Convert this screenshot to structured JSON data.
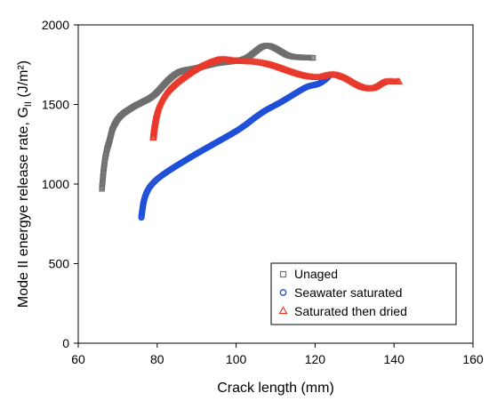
{
  "chart_data": {
    "type": "scatter",
    "xlabel": "Crack length (mm)",
    "ylabel": "Mode II energye release rate, G",
    "ylabel_subscript": "II",
    "ylabel_unit": " (J/m²)",
    "xlim": [
      60,
      160
    ],
    "ylim": [
      0,
      2000
    ],
    "xticks": [
      "60",
      "80",
      "100",
      "120",
      "140",
      "160"
    ],
    "yticks": [
      "0",
      "500",
      "1000",
      "1500",
      "2000"
    ],
    "grid": false,
    "legend_position": "bottom-right",
    "series": [
      {
        "name": "Unaged",
        "marker": "square",
        "color": "#6e6e6e",
        "points": [
          [
            66,
            970
          ],
          [
            66.4,
            1080
          ],
          [
            66.8,
            1160
          ],
          [
            67.3,
            1220
          ],
          [
            67.8,
            1260
          ],
          [
            68.2,
            1300
          ],
          [
            68.6,
            1340
          ],
          [
            69.1,
            1370
          ],
          [
            69.8,
            1400
          ],
          [
            70.6,
            1425
          ],
          [
            71.5,
            1445
          ],
          [
            72.5,
            1462
          ],
          [
            73.5,
            1478
          ],
          [
            74.5,
            1493
          ],
          [
            75.5,
            1505
          ],
          [
            76.5,
            1518
          ],
          [
            77.5,
            1530
          ],
          [
            78.5,
            1545
          ],
          [
            79.5,
            1565
          ],
          [
            80.5,
            1590
          ],
          [
            81.5,
            1618
          ],
          [
            82.5,
            1645
          ],
          [
            83.5,
            1668
          ],
          [
            84.5,
            1688
          ],
          [
            85.5,
            1703
          ],
          [
            86.5,
            1712
          ],
          [
            87.5,
            1718
          ],
          [
            88.5,
            1722
          ],
          [
            89.5,
            1727
          ],
          [
            90.5,
            1732
          ],
          [
            91.5,
            1738
          ],
          [
            92.5,
            1744
          ],
          [
            93.5,
            1750
          ],
          [
            94.5,
            1756
          ],
          [
            95.5,
            1760
          ],
          [
            96.5,
            1763
          ],
          [
            97.5,
            1766
          ],
          [
            98.5,
            1769
          ],
          [
            99.5,
            1772
          ],
          [
            100.5,
            1776
          ],
          [
            101.5,
            1781
          ],
          [
            102.5,
            1790
          ],
          [
            103.5,
            1805
          ],
          [
            104.5,
            1825
          ],
          [
            105.5,
            1845
          ],
          [
            106.5,
            1862
          ],
          [
            107.5,
            1870
          ],
          [
            108.5,
            1868
          ],
          [
            109.5,
            1858
          ],
          [
            110.5,
            1845
          ],
          [
            111.5,
            1830
          ],
          [
            112.5,
            1815
          ],
          [
            113.5,
            1805
          ],
          [
            114.5,
            1800
          ],
          [
            115.5,
            1797
          ],
          [
            116.5,
            1796
          ],
          [
            117.5,
            1795
          ],
          [
            118.5,
            1794
          ],
          [
            119.5,
            1793
          ]
        ]
      },
      {
        "name": "Seawater saturated",
        "marker": "circle",
        "color": "#1f4fd8",
        "points": [
          [
            76,
            790
          ],
          [
            76.2,
            830
          ],
          [
            76.5,
            880
          ],
          [
            76.9,
            920
          ],
          [
            77.4,
            950
          ],
          [
            78,
            978
          ],
          [
            78.8,
            1002
          ],
          [
            79.7,
            1025
          ],
          [
            80.7,
            1045
          ],
          [
            81.7,
            1063
          ],
          [
            82.7,
            1080
          ],
          [
            83.7,
            1096
          ],
          [
            84.7,
            1112
          ],
          [
            85.7,
            1127
          ],
          [
            86.7,
            1142
          ],
          [
            87.7,
            1157
          ],
          [
            88.7,
            1172
          ],
          [
            89.7,
            1187
          ],
          [
            90.7,
            1201
          ],
          [
            91.7,
            1215
          ],
          [
            92.7,
            1229
          ],
          [
            93.7,
            1243
          ],
          [
            94.7,
            1257
          ],
          [
            95.7,
            1271
          ],
          [
            96.7,
            1285
          ],
          [
            97.7,
            1299
          ],
          [
            98.7,
            1313
          ],
          [
            99.7,
            1328
          ],
          [
            100.7,
            1343
          ],
          [
            101.7,
            1360
          ],
          [
            102.7,
            1378
          ],
          [
            103.7,
            1397
          ],
          [
            104.7,
            1416
          ],
          [
            105.7,
            1434
          ],
          [
            106.7,
            1451
          ],
          [
            107.7,
            1466
          ],
          [
            108.7,
            1480
          ],
          [
            109.7,
            1493
          ],
          [
            110.7,
            1506
          ],
          [
            111.7,
            1520
          ],
          [
            112.7,
            1535
          ],
          [
            113.7,
            1550
          ],
          [
            114.7,
            1565
          ],
          [
            115.7,
            1580
          ],
          [
            116.7,
            1595
          ],
          [
            117.7,
            1608
          ],
          [
            118.7,
            1617
          ],
          [
            119.7,
            1622
          ],
          [
            120.7,
            1628
          ],
          [
            121.7,
            1640
          ],
          [
            122.7,
            1658
          ],
          [
            123.5,
            1678
          ]
        ]
      },
      {
        "name": "Saturated then dried",
        "marker": "triangle",
        "color": "#e8392c",
        "points": [
          [
            79,
            1290
          ],
          [
            79.2,
            1340
          ],
          [
            79.5,
            1390
          ],
          [
            79.8,
            1430
          ],
          [
            80.2,
            1470
          ],
          [
            80.7,
            1505
          ],
          [
            81.3,
            1535
          ],
          [
            82,
            1562
          ],
          [
            82.8,
            1587
          ],
          [
            83.7,
            1610
          ],
          [
            84.7,
            1632
          ],
          [
            85.7,
            1652
          ],
          [
            86.7,
            1670
          ],
          [
            87.7,
            1688
          ],
          [
            88.7,
            1705
          ],
          [
            89.7,
            1720
          ],
          [
            90.7,
            1734
          ],
          [
            91.7,
            1746
          ],
          [
            92.7,
            1757
          ],
          [
            93.7,
            1767
          ],
          [
            94.7,
            1776
          ],
          [
            95.7,
            1782
          ],
          [
            96.7,
            1784
          ],
          [
            97.7,
            1782
          ],
          [
            98.7,
            1778
          ],
          [
            99.7,
            1775
          ],
          [
            100.7,
            1773
          ],
          [
            101.7,
            1772
          ],
          [
            102.7,
            1771
          ],
          [
            103.7,
            1770
          ],
          [
            104.7,
            1768
          ],
          [
            105.7,
            1765
          ],
          [
            106.7,
            1761
          ],
          [
            107.7,
            1756
          ],
          [
            108.7,
            1750
          ],
          [
            109.7,
            1743
          ],
          [
            110.7,
            1735
          ],
          [
            111.7,
            1726
          ],
          [
            112.7,
            1717
          ],
          [
            113.7,
            1708
          ],
          [
            114.7,
            1700
          ],
          [
            115.7,
            1692
          ],
          [
            116.7,
            1685
          ],
          [
            117.7,
            1679
          ],
          [
            118.7,
            1675
          ],
          [
            119.7,
            1672
          ],
          [
            120.7,
            1671
          ],
          [
            121.7,
            1675
          ],
          [
            122.7,
            1682
          ],
          [
            123.7,
            1687
          ],
          [
            124.7,
            1688
          ],
          [
            125.7,
            1684
          ],
          [
            126.7,
            1676
          ],
          [
            127.7,
            1666
          ],
          [
            128.7,
            1653
          ],
          [
            129.7,
            1638
          ],
          [
            130.7,
            1624
          ],
          [
            131.7,
            1612
          ],
          [
            132.7,
            1604
          ],
          [
            133.7,
            1600
          ],
          [
            134.7,
            1603
          ],
          [
            135.7,
            1615
          ],
          [
            136.7,
            1632
          ],
          [
            137.7,
            1643
          ],
          [
            138.7,
            1645
          ],
          [
            139.7,
            1644
          ],
          [
            140.7,
            1643
          ],
          [
            141.3,
            1645
          ]
        ]
      }
    ]
  }
}
